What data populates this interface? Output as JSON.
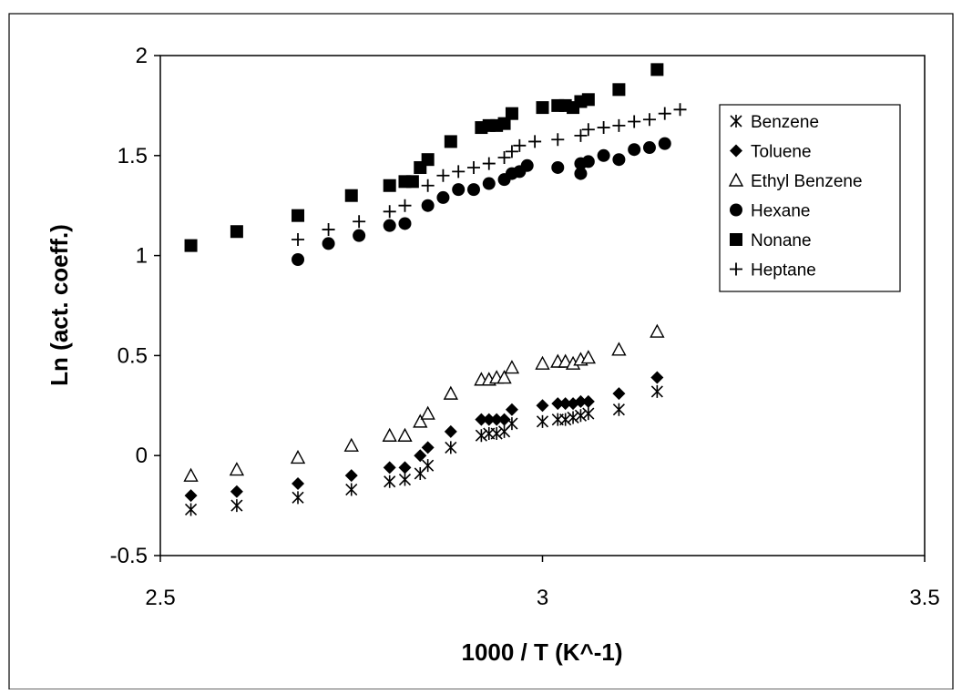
{
  "chart_data": {
    "type": "scatter",
    "title": "",
    "xlabel": "1000 / T  (K^-1)",
    "ylabel": "Ln (act. coeff.)",
    "xlim": [
      2.5,
      3.5
    ],
    "ylim": [
      -0.5,
      2
    ],
    "x_ticks": [
      "2.5",
      "3",
      "3.5"
    ],
    "y_ticks": [
      "-0.5",
      "0",
      "0.5",
      "1",
      "1.5",
      "2"
    ],
    "grid": false,
    "legend_position": "top-right",
    "series": [
      {
        "name": "Benzene",
        "marker": "asterisk",
        "points": [
          [
            2.54,
            -0.27
          ],
          [
            2.6,
            -0.25
          ],
          [
            2.68,
            -0.21
          ],
          [
            2.75,
            -0.17
          ],
          [
            2.8,
            -0.13
          ],
          [
            2.82,
            -0.12
          ],
          [
            2.84,
            -0.09
          ],
          [
            2.85,
            -0.05
          ],
          [
            2.88,
            0.04
          ],
          [
            2.92,
            0.1
          ],
          [
            2.93,
            0.11
          ],
          [
            2.94,
            0.11
          ],
          [
            2.95,
            0.12
          ],
          [
            2.96,
            0.16
          ],
          [
            3.0,
            0.17
          ],
          [
            3.02,
            0.18
          ],
          [
            3.03,
            0.18
          ],
          [
            3.04,
            0.19
          ],
          [
            3.05,
            0.2
          ],
          [
            3.06,
            0.21
          ],
          [
            3.1,
            0.23
          ],
          [
            3.15,
            0.32
          ]
        ]
      },
      {
        "name": "Toluene",
        "marker": "diamond",
        "points": [
          [
            2.54,
            -0.2
          ],
          [
            2.6,
            -0.18
          ],
          [
            2.68,
            -0.14
          ],
          [
            2.75,
            -0.1
          ],
          [
            2.8,
            -0.06
          ],
          [
            2.82,
            -0.06
          ],
          [
            2.84,
            0.0
          ],
          [
            2.85,
            0.04
          ],
          [
            2.88,
            0.12
          ],
          [
            2.92,
            0.18
          ],
          [
            2.93,
            0.18
          ],
          [
            2.94,
            0.18
          ],
          [
            2.95,
            0.18
          ],
          [
            2.96,
            0.23
          ],
          [
            3.0,
            0.25
          ],
          [
            3.02,
            0.26
          ],
          [
            3.03,
            0.26
          ],
          [
            3.04,
            0.26
          ],
          [
            3.05,
            0.27
          ],
          [
            3.06,
            0.27
          ],
          [
            3.1,
            0.31
          ],
          [
            3.15,
            0.39
          ]
        ]
      },
      {
        "name": "Ethyl Benzene",
        "marker": "triangle-open",
        "points": [
          [
            2.54,
            -0.1
          ],
          [
            2.6,
            -0.07
          ],
          [
            2.68,
            -0.01
          ],
          [
            2.75,
            0.05
          ],
          [
            2.8,
            0.1
          ],
          [
            2.82,
            0.1
          ],
          [
            2.84,
            0.17
          ],
          [
            2.85,
            0.21
          ],
          [
            2.88,
            0.31
          ],
          [
            2.92,
            0.38
          ],
          [
            2.93,
            0.38
          ],
          [
            2.94,
            0.39
          ],
          [
            2.95,
            0.39
          ],
          [
            2.96,
            0.44
          ],
          [
            3.0,
            0.46
          ],
          [
            3.02,
            0.47
          ],
          [
            3.03,
            0.47
          ],
          [
            3.04,
            0.46
          ],
          [
            3.05,
            0.48
          ],
          [
            3.06,
            0.49
          ],
          [
            3.1,
            0.53
          ],
          [
            3.15,
            0.62
          ]
        ]
      },
      {
        "name": "Hexane",
        "marker": "circle",
        "points": [
          [
            2.68,
            0.98
          ],
          [
            2.72,
            1.06
          ],
          [
            2.76,
            1.1
          ],
          [
            2.8,
            1.15
          ],
          [
            2.82,
            1.16
          ],
          [
            2.85,
            1.25
          ],
          [
            2.87,
            1.29
          ],
          [
            2.89,
            1.33
          ],
          [
            2.91,
            1.33
          ],
          [
            2.93,
            1.36
          ],
          [
            2.95,
            1.38
          ],
          [
            2.96,
            1.41
          ],
          [
            2.97,
            1.42
          ],
          [
            2.98,
            1.45
          ],
          [
            3.02,
            1.44
          ],
          [
            3.05,
            1.46
          ],
          [
            3.05,
            1.41
          ],
          [
            3.06,
            1.47
          ],
          [
            3.08,
            1.5
          ],
          [
            3.1,
            1.48
          ],
          [
            3.12,
            1.53
          ],
          [
            3.14,
            1.54
          ],
          [
            3.16,
            1.56
          ]
        ]
      },
      {
        "name": "Nonane",
        "marker": "square",
        "points": [
          [
            2.54,
            1.05
          ],
          [
            2.6,
            1.12
          ],
          [
            2.68,
            1.2
          ],
          [
            2.75,
            1.3
          ],
          [
            2.8,
            1.35
          ],
          [
            2.82,
            1.37
          ],
          [
            2.83,
            1.37
          ],
          [
            2.84,
            1.44
          ],
          [
            2.85,
            1.48
          ],
          [
            2.88,
            1.57
          ],
          [
            2.92,
            1.64
          ],
          [
            2.93,
            1.65
          ],
          [
            2.94,
            1.65
          ],
          [
            2.95,
            1.66
          ],
          [
            2.96,
            1.71
          ],
          [
            3.0,
            1.74
          ],
          [
            3.02,
            1.75
          ],
          [
            3.03,
            1.75
          ],
          [
            3.04,
            1.74
          ],
          [
            3.05,
            1.77
          ],
          [
            3.06,
            1.78
          ],
          [
            3.1,
            1.83
          ],
          [
            3.15,
            1.93
          ]
        ]
      },
      {
        "name": "Heptane",
        "marker": "plus",
        "points": [
          [
            2.68,
            1.08
          ],
          [
            2.72,
            1.13
          ],
          [
            2.76,
            1.17
          ],
          [
            2.8,
            1.22
          ],
          [
            2.82,
            1.25
          ],
          [
            2.85,
            1.35
          ],
          [
            2.87,
            1.4
          ],
          [
            2.89,
            1.42
          ],
          [
            2.91,
            1.44
          ],
          [
            2.93,
            1.46
          ],
          [
            2.95,
            1.49
          ],
          [
            2.96,
            1.52
          ],
          [
            2.97,
            1.55
          ],
          [
            2.99,
            1.57
          ],
          [
            3.02,
            1.58
          ],
          [
            3.05,
            1.6
          ],
          [
            3.06,
            1.63
          ],
          [
            3.08,
            1.64
          ],
          [
            3.1,
            1.65
          ],
          [
            3.12,
            1.67
          ],
          [
            3.14,
            1.68
          ],
          [
            3.16,
            1.71
          ],
          [
            3.18,
            1.73
          ]
        ]
      }
    ]
  }
}
